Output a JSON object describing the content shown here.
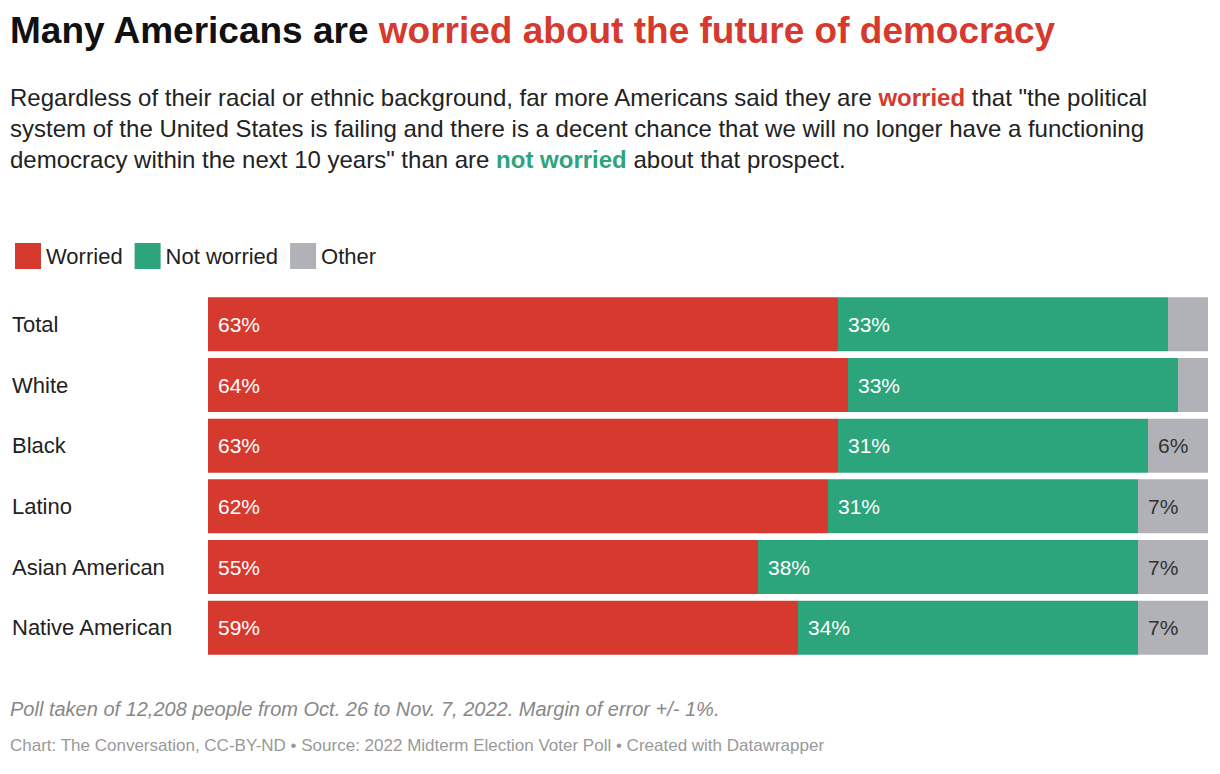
{
  "chart_data": {
    "type": "bar",
    "orientation": "horizontal",
    "stacked": true,
    "data_labels": true,
    "tick_labels": "y",
    "grid": false,
    "legend": "top-left",
    "title": "Many Americans are worried about the future of democracy",
    "title_highlight": "worried about the future of democracy",
    "subtitle": [
      {
        "text": "Regardless of their racial or ethnic background, far more Americans said they are "
      },
      {
        "text": "worried",
        "series": "Worried"
      },
      {
        "text": " that \"the political system of the United States is failing and there is a decent chance that we will no longer have a functioning democracy within the next 10 years\" than are "
      },
      {
        "text": "not worried",
        "series": "Not worried"
      },
      {
        "text": " about that prospect."
      }
    ],
    "note": "Poll taken of 12,208 people from Oct. 26 to Nov. 7, 2022. Margin of error +/- 1%.",
    "source": "Chart: The Conversation, CC-BY-ND • Source: 2022 Midterm Election Voter Poll • Created with Datawrapper",
    "categories": [
      "Total",
      "White",
      "Black",
      "Latino",
      "Asian American",
      "Native American"
    ],
    "xlim": [
      0,
      100
    ],
    "series": [
      {
        "name": "Worried",
        "color": "#d63a2f",
        "values": [
          63,
          64,
          63,
          62,
          55,
          59
        ],
        "value_labels": [
          "63%",
          "64%",
          "63%",
          "62%",
          "55%",
          "59%"
        ]
      },
      {
        "name": "Not worried",
        "color": "#2ca57c",
        "values": [
          33,
          33,
          31,
          31,
          38,
          34
        ],
        "value_labels": [
          "33%",
          "33%",
          "31%",
          "31%",
          "38%",
          "34%"
        ]
      },
      {
        "name": "Other",
        "color": "#b1b2b8",
        "values": [
          4,
          3,
          6,
          7,
          7,
          7
        ],
        "value_labels": [
          null,
          null,
          "6%",
          "7%",
          "7%",
          "7%"
        ]
      }
    ]
  }
}
